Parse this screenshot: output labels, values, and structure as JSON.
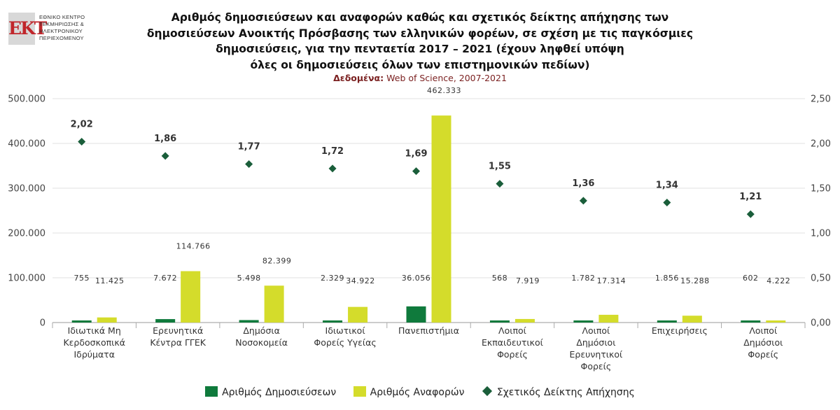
{
  "logo": {
    "mark": "ΕΚΤ",
    "lines": [
      "ΕΘΝΙΚΟ ΚΕΝΤΡΟ",
      "ΤΕΚΜΗΡΙΩΣΗΣ &",
      "ΗΛΕΚΤΡΟΝΙΚΟΥ",
      "ΠΕΡΙΕΧΟΜΕΝΟΥ"
    ]
  },
  "title_lines": [
    "Αριθμός δημοσιεύσεων και αναφορών καθώς και σχετικός δείκτης απήχησης των",
    "δημοσιεύσεων Ανοικτής Πρόσβασης των ελληνικών φορέων, σε σχέση με τις παγκόσμιες",
    "δημοσιεύσεις, για την πενταετία 2017 – 2021 (έχουν ληφθεί υπόψη",
    "όλες οι δημοσιεύσεις όλων των επιστημονικών πεδίων)"
  ],
  "source": {
    "label": "Δεδομένα:",
    "text": "Web of Science, 2007-2021"
  },
  "colors": {
    "publications": "#0f7a3c",
    "citations": "#d4dc2b",
    "index": "#1a5e3a"
  },
  "chart_data": {
    "type": "bar",
    "categories": [
      [
        "Ιδιωτικά Μη",
        "Κερδοσκοπικά",
        "Ιδρύματα"
      ],
      [
        "Ερευνητικά",
        "Κέντρα ΓΓΕΚ"
      ],
      [
        "Δημόσια",
        "Νοσοκομεία"
      ],
      [
        "Ιδιωτικοί",
        "Φορείς Υγείας"
      ],
      [
        "Πανεπιστήμια"
      ],
      [
        "Λοιποί",
        "Εκπαιδευτικοί",
        "Φορείς"
      ],
      [
        "Λοιποί",
        "Δημόσιοι",
        "Ερευνητικοί",
        "Φορείς"
      ],
      [
        "Επιχειρήσεις"
      ],
      [
        "Λοιποί",
        "Δημόσιοι",
        "Φορείς"
      ]
    ],
    "series": [
      {
        "name": "Αριθμός Δημοσιεύσεων",
        "type": "bar",
        "axis": "left",
        "values": [
          755,
          7672,
          5498,
          2329,
          36056,
          568,
          1782,
          1856,
          602
        ],
        "labels": [
          "755",
          "7.672",
          "5.498",
          "2.329",
          "36.056",
          "568",
          "1.782",
          "1.856",
          "602"
        ]
      },
      {
        "name": "Αριθμός Αναφορών",
        "type": "bar",
        "axis": "left",
        "values": [
          11425,
          114766,
          82399,
          34922,
          462333,
          7919,
          17314,
          15288,
          4222
        ],
        "labels": [
          "11.425",
          "114.766",
          "82.399",
          "34.922",
          "462.333",
          "7.919",
          "17.314",
          "15.288",
          "4.222"
        ]
      },
      {
        "name": "Σχετικός Δείκτης Απήχησης",
        "type": "scatter",
        "axis": "right",
        "values": [
          2.02,
          1.86,
          1.77,
          1.72,
          1.69,
          1.55,
          1.36,
          1.34,
          1.21
        ],
        "labels": [
          "2,02",
          "1,86",
          "1,77",
          "1,72",
          "1,69",
          "1,55",
          "1,36",
          "1,34",
          "1,21"
        ]
      }
    ],
    "y_left": {
      "min": 0,
      "max": 500000,
      "ticks": [
        "0",
        "100.000",
        "200.000",
        "300.000",
        "400.000",
        "500.000"
      ]
    },
    "y_right": {
      "min": 0,
      "max": 2.5,
      "ticks": [
        "0,00",
        "0,50",
        "1,00",
        "1,50",
        "2,00",
        "2,50"
      ]
    },
    "grid": true,
    "legend_position": "bottom"
  }
}
